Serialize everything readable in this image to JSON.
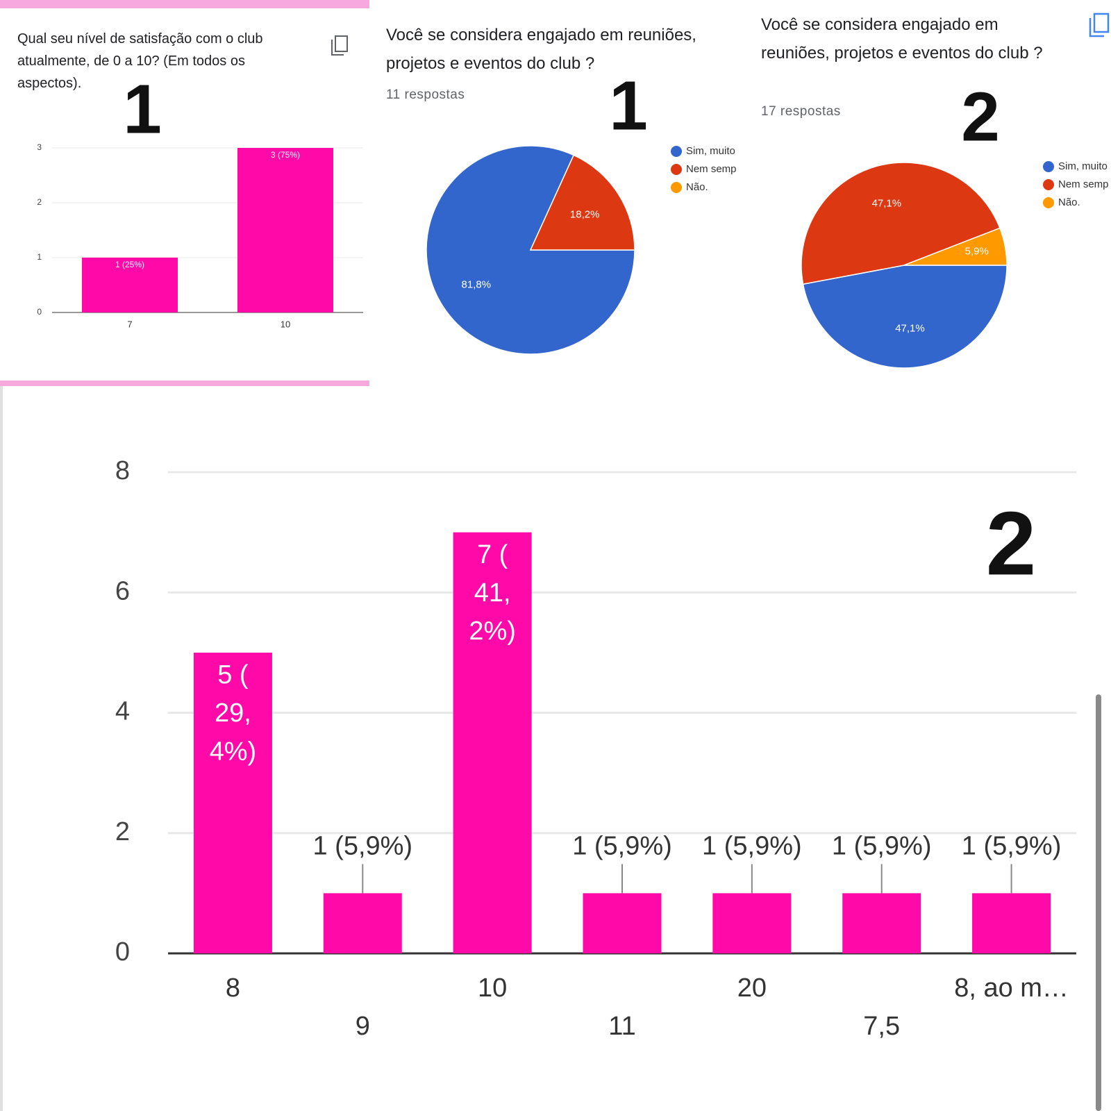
{
  "chart_data": [
    {
      "type": "bar",
      "title": "Qual seu nível de satisfação com o club atualmente, de 0 a 10? (Em todos os aspectos).",
      "annotation": "1",
      "categories": [
        "7",
        "10"
      ],
      "values": [
        1,
        3
      ],
      "value_labels": [
        "1 (25%)",
        "3 (75%)"
      ],
      "color": "#ff0aa9",
      "ylim": [
        0,
        3
      ],
      "yticks": [
        0,
        1,
        2,
        3
      ],
      "grid": true
    },
    {
      "type": "pie",
      "title": "Você se considera engajado em reuniões, projetos e eventos do club ?",
      "subtitle": "11 respostas",
      "annotation": "1",
      "categories": [
        "Sim, muito",
        "Nem semp",
        "Não."
      ],
      "values": [
        81.8,
        18.2,
        0
      ],
      "value_labels": [
        "81,8%",
        "18,2%",
        null
      ],
      "colors": [
        "#3366cc",
        "#dc3912",
        "#ff9900"
      ]
    },
    {
      "type": "pie",
      "title": "Você se considera engajado em reuniões, projetos e eventos do club ?",
      "subtitle": "17 respostas",
      "annotation": "2",
      "categories": [
        "Sim, muito",
        "Nem semp",
        "Não."
      ],
      "values": [
        47.1,
        47.1,
        5.9
      ],
      "value_labels": [
        "47,1%",
        "47,1%",
        "5,9%"
      ],
      "colors": [
        "#3366cc",
        "#dc3912",
        "#ff9900"
      ]
    },
    {
      "type": "bar",
      "annotation": "2",
      "categories": [
        "8",
        "9",
        "10",
        "11",
        "20",
        "7,5",
        "8, ao m…"
      ],
      "values": [
        5,
        1,
        7,
        1,
        1,
        1,
        1
      ],
      "value_labels": [
        "5 (29,4%)",
        "1 (5,9%)",
        "7 (41,2%)",
        "1 (5,9%)",
        "1 (5,9%)",
        "1 (5,9%)",
        "1 (5,9%)"
      ],
      "color": "#ff0aa9",
      "ylim": [
        0,
        8
      ],
      "yticks": [
        0,
        2,
        4,
        6,
        8
      ],
      "grid": true
    }
  ]
}
